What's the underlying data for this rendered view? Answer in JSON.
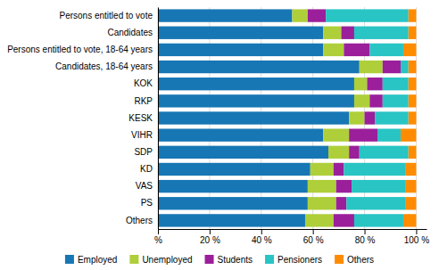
{
  "chart_data": {
    "type": "bar",
    "orientation": "horizontal",
    "stacked": true,
    "categories": [
      "Persons entitled to vote",
      "Candidates",
      "Persons entitled to vote, 18-64 years",
      "Candidates, 18-64 years",
      "KOK",
      "RKP",
      "KESK",
      "VIHR",
      "SDP",
      "KD",
      "VAS",
      "PS",
      "Others"
    ],
    "series": [
      {
        "name": "Employed",
        "color": "#1777B4",
        "values": [
          52,
          64,
          64,
          78,
          76,
          76,
          74,
          64,
          66,
          59,
          58,
          58,
          57
        ]
      },
      {
        "name": "Unemployed",
        "color": "#AECF3A",
        "values": [
          6,
          7,
          8,
          9,
          5,
          6,
          6,
          10,
          8,
          9,
          11,
          11,
          11
        ]
      },
      {
        "name": "Students",
        "color": "#9B1F9B",
        "values": [
          7,
          5,
          10,
          7,
          6,
          5,
          4,
          11,
          4,
          4,
          6,
          4,
          8
        ]
      },
      {
        "name": "Pensioners",
        "color": "#29C4C4",
        "values": [
          32,
          21,
          13,
          3,
          10,
          10,
          13,
          9,
          19,
          24,
          21,
          23,
          19
        ]
      },
      {
        "name": "Others",
        "color": "#FF8C00",
        "values": [
          3,
          3,
          5,
          3,
          3,
          3,
          3,
          6,
          3,
          4,
          4,
          4,
          5
        ]
      }
    ],
    "xlim": [
      0,
      104
    ],
    "xticks": [
      {
        "value": 0,
        "label": "%"
      },
      {
        "value": 20,
        "label": "20 %"
      },
      {
        "value": 40,
        "label": "40 %"
      },
      {
        "value": 60,
        "label": "60 %"
      },
      {
        "value": 80,
        "label": "80 %"
      },
      {
        "value": 100,
        "label": "100 %"
      }
    ],
    "grid": true,
    "legend": "bottom"
  }
}
